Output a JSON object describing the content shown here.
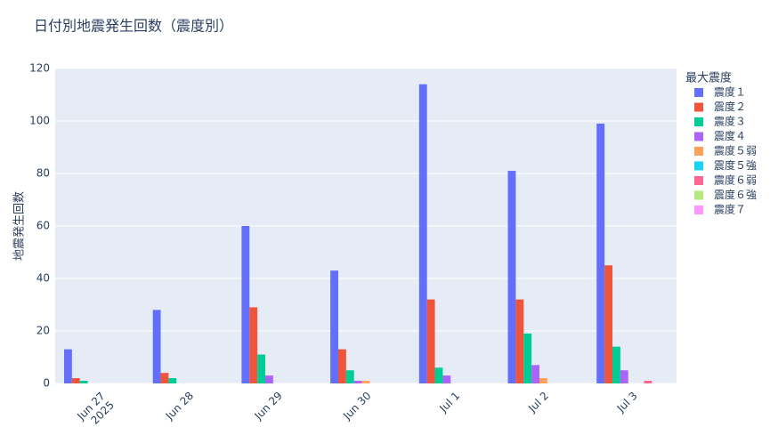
{
  "chart_data": {
    "type": "bar",
    "title": "日付別地震発生回数（震度別）",
    "y_label": "地震発生回数",
    "legend_title": "最大震度",
    "categories": [
      "Jun 27\n2025",
      "Jun 28",
      "Jun 29",
      "Jun 30",
      "Jul 1",
      "Jul 2",
      "Jul 3"
    ],
    "series": [
      {
        "name": "震度１",
        "color": "#636efa",
        "values": [
          13,
          28,
          60,
          43,
          114,
          81,
          99
        ]
      },
      {
        "name": "震度２",
        "color": "#EF553B",
        "values": [
          2,
          4,
          29,
          13,
          32,
          32,
          45
        ]
      },
      {
        "name": "震度３",
        "color": "#00cc96",
        "values": [
          1,
          2,
          11,
          5,
          6,
          19,
          14
        ]
      },
      {
        "name": "震度４",
        "color": "#ab63fa",
        "values": [
          0,
          0,
          3,
          1,
          3,
          7,
          5
        ]
      },
      {
        "name": "震度５弱",
        "color": "#FFA15A",
        "values": [
          0,
          0,
          0,
          1,
          0,
          2,
          0
        ]
      },
      {
        "name": "震度５強",
        "color": "#19d3f3",
        "values": [
          0,
          0,
          0,
          0,
          0,
          0,
          0
        ]
      },
      {
        "name": "震度６弱",
        "color": "#FF6692",
        "values": [
          0,
          0,
          0,
          0,
          0,
          0,
          1
        ]
      },
      {
        "name": "震度６強",
        "color": "#B6E880",
        "values": [
          0,
          0,
          0,
          0,
          0,
          0,
          0
        ]
      },
      {
        "name": "震度７",
        "color": "#FF97FF",
        "values": [
          0,
          0,
          0,
          0,
          0,
          0,
          0
        ]
      }
    ],
    "ylim": [
      0,
      120
    ],
    "yticks": [
      0,
      20,
      40,
      60,
      80,
      100,
      120
    ],
    "grid": true,
    "legend": "right"
  }
}
